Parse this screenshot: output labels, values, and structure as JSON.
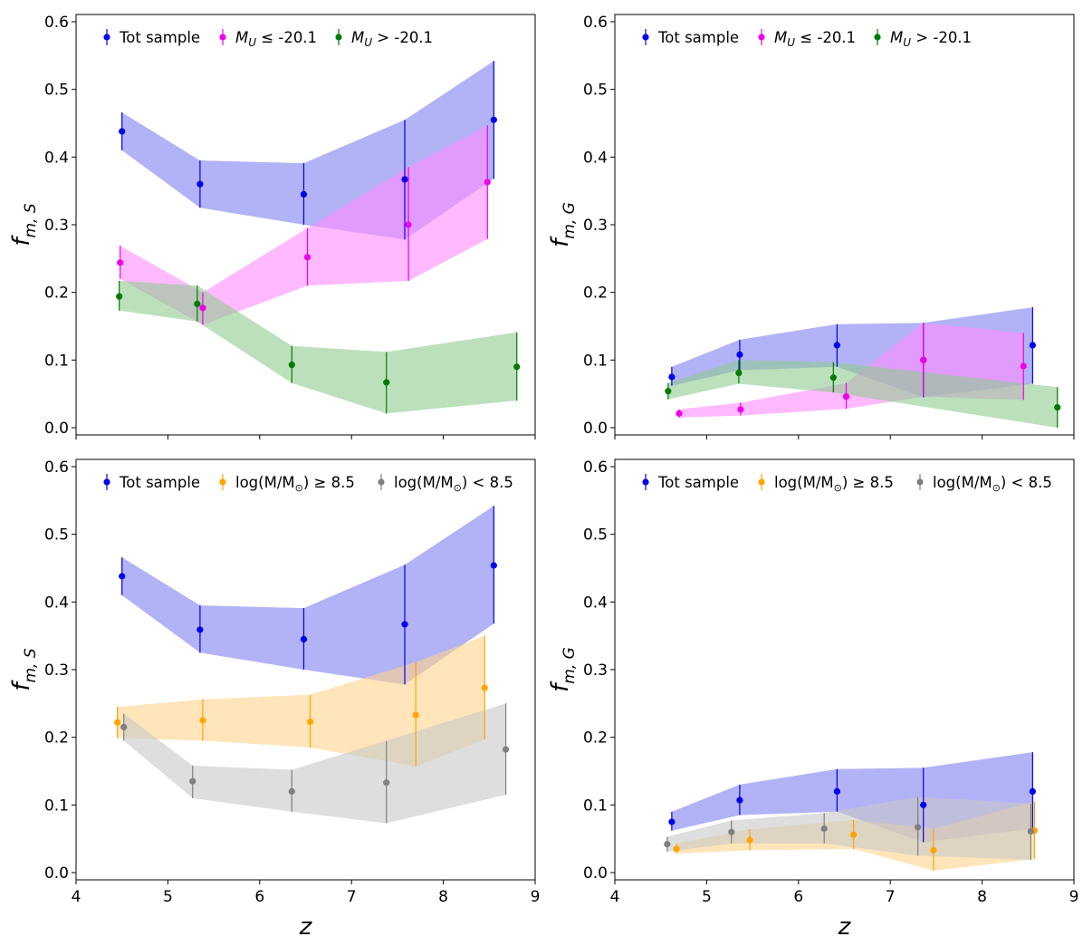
{
  "chart_data": [
    {
      "type": "line",
      "panel": "top-left",
      "ylabel_main": "f",
      "ylabel_sub": "m, S",
      "xlabel": "",
      "xlim": [
        4,
        9
      ],
      "ylim": [
        0,
        0.6
      ],
      "yticks": [
        "0.0",
        "0.1",
        "0.2",
        "0.3",
        "0.4",
        "0.5",
        "0.6"
      ],
      "xticks": [
        "4",
        "5",
        "6",
        "7",
        "8",
        "9"
      ],
      "show_xtick_labels": false,
      "legend_position": "top",
      "series": [
        {
          "name": "Tot sample",
          "label_kind": "plain",
          "color": "#0000ee",
          "band_color": "#7f7ff2",
          "x": [
            4.5,
            5.35,
            6.48,
            7.58,
            8.55
          ],
          "y": [
            0.438,
            0.36,
            0.345,
            0.367,
            0.455
          ],
          "lo": [
            0.41,
            0.325,
            0.3,
            0.278,
            0.368
          ],
          "hi": [
            0.466,
            0.395,
            0.391,
            0.455,
            0.542
          ]
        },
        {
          "name": "M",
          "label_kind": "mu_le",
          "label_sub": "U",
          "label_rest": " ≤ -20.1",
          "color": "#ee00ee",
          "band_color": "#ff8cff",
          "x": [
            4.48,
            5.38,
            6.52,
            7.62,
            8.48
          ],
          "y": [
            0.244,
            0.177,
            0.252,
            0.3,
            0.363
          ],
          "lo": [
            0.22,
            0.152,
            0.21,
            0.217,
            0.279
          ],
          "hi": [
            0.269,
            0.2,
            0.295,
            0.385,
            0.447
          ]
        },
        {
          "name": "M",
          "label_kind": "mu_gt",
          "label_sub": "U",
          "label_rest": " > -20.1",
          "color": "#007a00",
          "band_color": "#8fcc8f",
          "x": [
            4.47,
            5.32,
            6.35,
            7.38,
            8.8
          ],
          "y": [
            0.194,
            0.183,
            0.093,
            0.067,
            0.09
          ],
          "lo": [
            0.173,
            0.157,
            0.066,
            0.021,
            0.04
          ],
          "hi": [
            0.217,
            0.21,
            0.121,
            0.112,
            0.141
          ]
        }
      ]
    },
    {
      "type": "line",
      "panel": "top-right",
      "ylabel_main": "f",
      "ylabel_sub": "m, G",
      "xlabel": "",
      "xlim": [
        4,
        9
      ],
      "ylim": [
        0,
        0.6
      ],
      "yticks": [
        "0.0",
        "0.1",
        "0.2",
        "0.3",
        "0.4",
        "0.5",
        "0.6"
      ],
      "xticks": [
        "4",
        "5",
        "6",
        "7",
        "8",
        "9"
      ],
      "show_xtick_labels": false,
      "legend_position": "top",
      "series": [
        {
          "name": "Tot sample",
          "label_kind": "plain",
          "color": "#0000ee",
          "band_color": "#7f7ff2",
          "x": [
            4.62,
            5.36,
            6.42,
            7.36,
            8.55
          ],
          "y": [
            0.075,
            0.108,
            0.122,
            0.1,
            0.122
          ],
          "lo": [
            0.062,
            0.085,
            0.09,
            0.045,
            0.065
          ],
          "hi": [
            0.09,
            0.13,
            0.153,
            0.155,
            0.178
          ]
        },
        {
          "name": "M",
          "label_kind": "mu_le",
          "label_sub": "U",
          "label_rest": " ≤ -20.1",
          "color": "#ee00ee",
          "band_color": "#ff8cff",
          "x": [
            4.7,
            5.37,
            6.52,
            7.36,
            8.45
          ],
          "y": [
            0.021,
            0.027,
            0.046,
            0.1,
            0.091
          ],
          "lo": [
            0.015,
            0.018,
            0.028,
            0.046,
            0.041
          ],
          "hi": [
            0.027,
            0.037,
            0.066,
            0.155,
            0.14
          ]
        },
        {
          "name": "M",
          "label_kind": "mu_gt",
          "label_sub": "U",
          "label_rest": " > -20.1",
          "color": "#007a00",
          "band_color": "#8fcc8f",
          "x": [
            4.58,
            5.35,
            6.38,
            8.82
          ],
          "y": [
            0.054,
            0.081,
            0.074,
            0.03
          ],
          "lo": [
            0.042,
            0.065,
            0.052,
            0.0
          ],
          "hi": [
            0.066,
            0.1,
            0.097,
            0.06
          ]
        }
      ]
    },
    {
      "type": "line",
      "panel": "bottom-left",
      "ylabel_main": "f",
      "ylabel_sub": "m, S",
      "xlabel": "z",
      "xlim": [
        4,
        9
      ],
      "ylim": [
        0,
        0.6
      ],
      "yticks": [
        "0.0",
        "0.1",
        "0.2",
        "0.3",
        "0.4",
        "0.5",
        "0.6"
      ],
      "xticks": [
        "4",
        "5",
        "6",
        "7",
        "8",
        "9"
      ],
      "show_xtick_labels": true,
      "legend_position": "top",
      "series": [
        {
          "name": "Tot sample",
          "label_kind": "plain",
          "color": "#0000ee",
          "band_color": "#7f7ff2",
          "x": [
            4.5,
            5.35,
            6.48,
            7.58,
            8.55
          ],
          "y": [
            0.438,
            0.359,
            0.345,
            0.367,
            0.454
          ],
          "lo": [
            0.41,
            0.325,
            0.3,
            0.278,
            0.368
          ],
          "hi": [
            0.466,
            0.395,
            0.391,
            0.455,
            0.542
          ]
        },
        {
          "name": "log(M/M",
          "label_kind": "mass_ge",
          "label_rest": ") ≥ 8.5",
          "color": "#ffa500",
          "band_color": "#ffd48a",
          "x": [
            4.45,
            5.38,
            6.55,
            7.7,
            8.45
          ],
          "y": [
            0.222,
            0.225,
            0.223,
            0.233,
            0.273
          ],
          "lo": [
            0.199,
            0.195,
            0.185,
            0.157,
            0.197
          ],
          "hi": [
            0.245,
            0.256,
            0.263,
            0.311,
            0.35
          ]
        },
        {
          "name": "log(M/M",
          "label_kind": "mass_lt",
          "label_rest": ") < 8.5",
          "color": "#808080",
          "band_color": "#c8c8c8",
          "x": [
            4.52,
            5.27,
            6.35,
            7.38,
            8.68
          ],
          "y": [
            0.215,
            0.135,
            0.12,
            0.133,
            0.182
          ],
          "lo": [
            0.195,
            0.11,
            0.09,
            0.073,
            0.115
          ],
          "hi": [
            0.235,
            0.158,
            0.152,
            0.195,
            0.25
          ]
        }
      ]
    },
    {
      "type": "line",
      "panel": "bottom-right",
      "ylabel_main": "f",
      "ylabel_sub": "m, G",
      "xlabel": "z",
      "xlim": [
        4,
        9
      ],
      "ylim": [
        0,
        0.6
      ],
      "yticks": [
        "0.0",
        "0.1",
        "0.2",
        "0.3",
        "0.4",
        "0.5",
        "0.6"
      ],
      "xticks": [
        "4",
        "5",
        "6",
        "7",
        "8",
        "9"
      ],
      "show_xtick_labels": true,
      "legend_position": "top",
      "series": [
        {
          "name": "Tot sample",
          "label_kind": "plain",
          "color": "#0000ee",
          "band_color": "#7f7ff2",
          "x": [
            4.62,
            5.36,
            6.42,
            7.36,
            8.55
          ],
          "y": [
            0.075,
            0.107,
            0.12,
            0.1,
            0.12
          ],
          "lo": [
            0.062,
            0.085,
            0.09,
            0.045,
            0.065
          ],
          "hi": [
            0.09,
            0.13,
            0.153,
            0.155,
            0.178
          ]
        },
        {
          "name": "log(M/M",
          "label_kind": "mass_ge",
          "label_rest": ") ≥ 8.5",
          "color": "#ffa500",
          "band_color": "#ffd48a",
          "x": [
            4.67,
            5.47,
            6.6,
            7.47,
            8.57
          ],
          "y": [
            0.035,
            0.048,
            0.056,
            0.033,
            0.062
          ],
          "lo": [
            0.028,
            0.033,
            0.035,
            0.003,
            0.02
          ],
          "hi": [
            0.043,
            0.064,
            0.078,
            0.065,
            0.105
          ]
        },
        {
          "name": "log(M/M",
          "label_kind": "mass_lt",
          "label_rest": ") < 8.5",
          "color": "#808080",
          "band_color": "#c8c8c8",
          "x": [
            4.57,
            5.27,
            6.28,
            7.3,
            8.53
          ],
          "y": [
            0.042,
            0.06,
            0.065,
            0.067,
            0.061
          ],
          "lo": [
            0.031,
            0.043,
            0.043,
            0.025,
            0.019
          ],
          "hi": [
            0.053,
            0.077,
            0.088,
            0.112,
            0.102
          ]
        }
      ]
    }
  ]
}
